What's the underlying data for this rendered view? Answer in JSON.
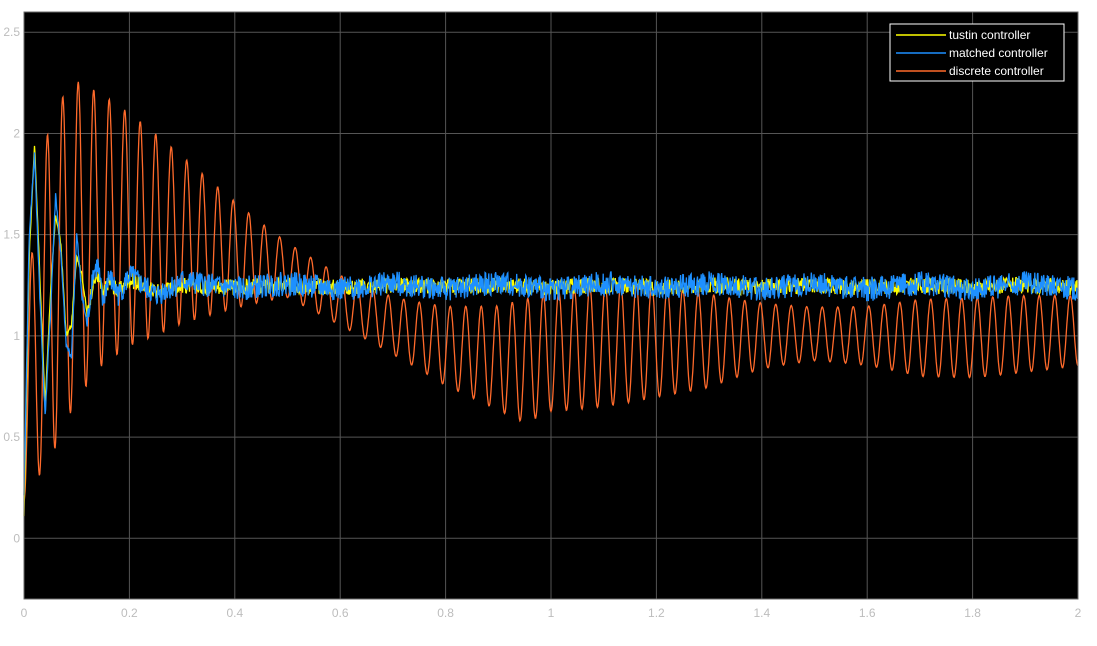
{
  "chart_data": {
    "type": "line",
    "title": "",
    "xlabel": "",
    "ylabel": "",
    "xlim": [
      0,
      2
    ],
    "ylim": [
      -0.3,
      2.6
    ],
    "grid": true,
    "legend_position": "top-right",
    "background": "#000000",
    "grid_color": "#555555",
    "x_ticks": [
      {
        "value": 0,
        "label": "0"
      },
      {
        "value": 0.2,
        "label": "0.2"
      },
      {
        "value": 0.4,
        "label": "0.4"
      },
      {
        "value": 0.6,
        "label": "0.6"
      },
      {
        "value": 0.8,
        "label": "0.8"
      },
      {
        "value": 1,
        "label": "1"
      },
      {
        "value": 1.2,
        "label": "1.2"
      },
      {
        "value": 1.4,
        "label": "1.4"
      },
      {
        "value": 1.6,
        "label": "1.6"
      },
      {
        "value": 1.8,
        "label": "1.8"
      },
      {
        "value": 2,
        "label": "2"
      }
    ],
    "y_ticks": [
      {
        "value": 0,
        "label": "0"
      },
      {
        "value": 0.5,
        "label": "0.5"
      },
      {
        "value": 1,
        "label": "1"
      },
      {
        "value": 1.5,
        "label": "1.5"
      },
      {
        "value": 2,
        "label": "2"
      },
      {
        "value": 2.5,
        "label": "2.5"
      }
    ],
    "series": [
      {
        "name": "tustin  controller",
        "color": "#ffff00",
        "x": [
          0,
          0.01,
          0.02,
          0.03,
          0.04,
          0.05,
          0.06,
          0.07,
          0.08,
          0.09,
          0.1,
          0.11,
          0.12,
          0.13,
          0.14,
          0.15,
          0.16,
          0.18,
          0.2,
          0.25,
          0.3,
          0.4,
          0.5,
          0.6,
          0.7,
          0.8,
          0.9,
          1.0,
          1.1,
          1.2,
          1.3,
          1.4,
          1.5,
          1.6,
          1.7,
          1.8,
          1.9,
          2.0
        ],
        "y": [
          0.1,
          1.4,
          1.95,
          1.3,
          0.65,
          1.2,
          1.6,
          1.45,
          1.0,
          1.05,
          1.4,
          1.3,
          1.1,
          1.25,
          1.3,
          1.2,
          1.27,
          1.22,
          1.28,
          1.22,
          1.25,
          1.24,
          1.25,
          1.24,
          1.25,
          1.24,
          1.25,
          1.24,
          1.25,
          1.24,
          1.25,
          1.24,
          1.25,
          1.24,
          1.25,
          1.24,
          1.25,
          1.24
        ]
      },
      {
        "name": "matched controller",
        "color": "#1e90ff",
        "x": [
          0,
          0.01,
          0.02,
          0.03,
          0.04,
          0.05,
          0.06,
          0.07,
          0.08,
          0.09,
          0.1,
          0.11,
          0.12,
          0.13,
          0.14,
          0.15,
          0.16,
          0.18,
          0.2,
          0.25,
          0.3,
          0.4,
          0.5,
          0.6,
          0.7,
          0.8,
          0.9,
          1.0,
          1.1,
          1.2,
          1.3,
          1.4,
          1.5,
          1.6,
          1.7,
          1.8,
          1.9,
          2.0
        ],
        "y": [
          0.2,
          1.5,
          1.9,
          1.2,
          0.6,
          1.1,
          1.7,
          1.4,
          0.95,
          0.9,
          1.5,
          1.2,
          1.05,
          1.3,
          1.35,
          1.15,
          1.3,
          1.2,
          1.3,
          1.2,
          1.27,
          1.23,
          1.26,
          1.23,
          1.26,
          1.23,
          1.26,
          1.23,
          1.26,
          1.23,
          1.26,
          1.23,
          1.26,
          1.23,
          1.26,
          1.23,
          1.26,
          1.23
        ]
      },
      {
        "name": "discrete controller",
        "color": "#ff6a2b",
        "x": [
          0,
          0.05,
          0.1,
          0.15,
          0.2,
          0.3,
          0.4,
          0.5,
          0.6,
          0.7,
          0.8,
          0.9,
          0.95,
          1.0,
          1.1,
          1.2,
          1.3,
          1.4,
          1.5,
          1.6,
          1.7,
          1.8,
          1.9,
          2.0
        ],
        "y_upper": [
          1.2,
          2.2,
          2.3,
          2.2,
          2.1,
          1.9,
          1.7,
          1.5,
          1.35,
          1.25,
          1.2,
          1.18,
          1.2,
          1.22,
          1.25,
          1.27,
          1.25,
          1.22,
          1.2,
          1.2,
          1.22,
          1.2,
          1.2,
          1.2
        ],
        "y_lower": [
          0.1,
          0.3,
          0.65,
          0.85,
          0.95,
          1.05,
          1.1,
          1.15,
          1.0,
          0.85,
          0.7,
          0.6,
          0.55,
          0.62,
          0.65,
          0.68,
          0.7,
          0.78,
          0.82,
          0.8,
          0.76,
          0.78,
          0.82,
          0.85
        ]
      }
    ]
  }
}
